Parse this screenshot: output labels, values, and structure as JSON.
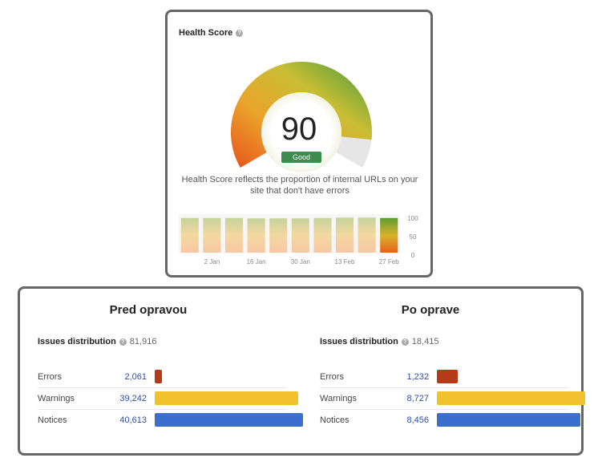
{
  "health": {
    "title": "Health Score",
    "help_icon": "question-circle-icon",
    "score": "90",
    "score_value": 90,
    "status": "Good",
    "description": "Health Score reflects the proportion of internal URLs on your site that don't have errors",
    "chart_data": {
      "type": "bar",
      "categories": [
        "",
        "2 Jan",
        "",
        "16 Jan",
        "",
        "30 Jan",
        "",
        "13 Feb",
        "",
        "27 Feb"
      ],
      "x_tick_labels": [
        "2 Jan",
        "16 Jan",
        "30 Jan",
        "13 Feb",
        "27 Feb"
      ],
      "y_tick_labels": [
        "100",
        "50",
        "0"
      ],
      "ylim": [
        0,
        100
      ],
      "values": [
        90,
        90,
        90,
        89,
        89,
        89,
        90,
        91,
        91,
        90
      ],
      "highlight_index": 9
    }
  },
  "before": {
    "title": "Pred opravou",
    "dist_label": "Issues distribution",
    "dist_total": "81,916",
    "rows": [
      {
        "label": "Errors",
        "value": "2,061",
        "count": 2061,
        "color": "#b53a17"
      },
      {
        "label": "Warnings",
        "value": "39,242",
        "count": 39242,
        "color": "#f2c12e"
      },
      {
        "label": "Notices",
        "value": "40,613",
        "count": 40613,
        "color": "#3a6fd0"
      }
    ]
  },
  "after": {
    "title": "Po oprave",
    "dist_label": "Issues distribution",
    "dist_total": "18,415",
    "rows": [
      {
        "label": "Errors",
        "value": "1,232",
        "count": 1232,
        "color": "#b53a17"
      },
      {
        "label": "Warnings",
        "value": "8,727",
        "count": 8727,
        "color": "#f2c12e"
      },
      {
        "label": "Notices",
        "value": "8,456",
        "count": 8456,
        "color": "#3a6fd0"
      }
    ]
  }
}
